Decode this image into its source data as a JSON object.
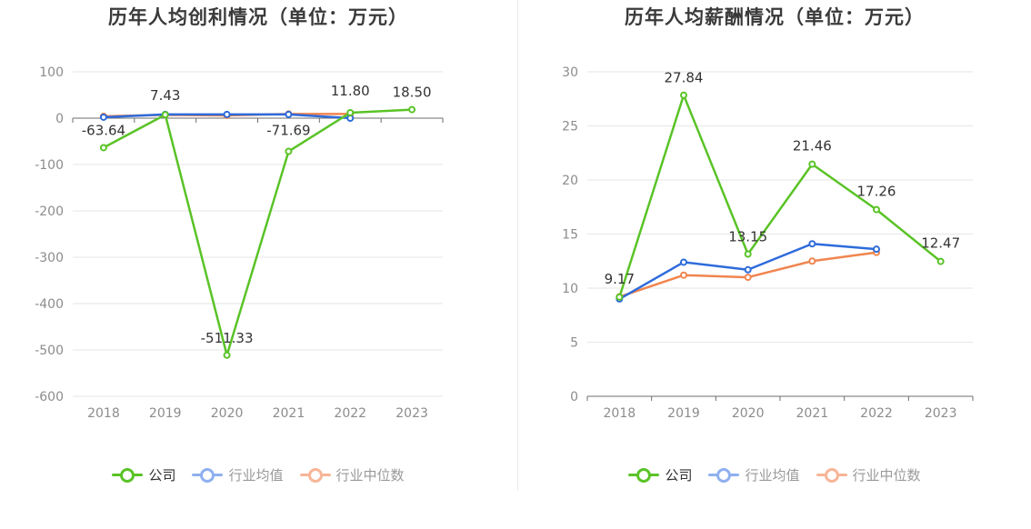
{
  "chart_data": [
    {
      "type": "line",
      "title": "历年人均创利情况（单位：万元）",
      "categories": [
        "2018",
        "2019",
        "2020",
        "2021",
        "2022",
        "2023"
      ],
      "ylim": [
        -600,
        100
      ],
      "yticks": [
        100,
        0,
        -100,
        -200,
        -300,
        -400,
        -500,
        -600
      ],
      "grid": true,
      "legend_position": "bottom",
      "series": [
        {
          "name": "公司",
          "color": "#5ac327",
          "values": [
            -63.64,
            7.43,
            -511.33,
            -71.69,
            11.8,
            18.5
          ],
          "labels": [
            "-63.64",
            "7.43",
            "-511.33",
            "-71.69",
            "11.80",
            "18.50"
          ]
        },
        {
          "name": "行业均值",
          "color": "#2e6bdb",
          "values": [
            2,
            8,
            8,
            8,
            0,
            null
          ]
        },
        {
          "name": "行业中位数",
          "color": "#f0854f",
          "values": [
            4,
            7,
            6,
            9,
            9,
            null
          ]
        }
      ]
    },
    {
      "type": "line",
      "title": "历年人均薪酬情况（单位：万元）",
      "categories": [
        "2018",
        "2019",
        "2020",
        "2021",
        "2022",
        "2023"
      ],
      "ylim": [
        0,
        30
      ],
      "yticks": [
        30,
        25,
        20,
        15,
        10,
        5,
        0
      ],
      "grid": true,
      "legend_position": "bottom",
      "series": [
        {
          "name": "公司",
          "color": "#5ac327",
          "values": [
            9.17,
            27.84,
            13.15,
            21.46,
            17.26,
            12.47
          ],
          "labels": [
            "9.17",
            "27.84",
            "13.15",
            "21.46",
            "17.26",
            "12.47"
          ]
        },
        {
          "name": "行业均值",
          "color": "#2e6bdb",
          "values": [
            9.0,
            12.4,
            11.7,
            14.1,
            13.6,
            null
          ]
        },
        {
          "name": "行业中位数",
          "color": "#f0854f",
          "values": [
            9.2,
            11.2,
            11.0,
            12.5,
            13.3,
            null
          ]
        }
      ]
    }
  ],
  "legend": {
    "items": [
      {
        "label": "公司",
        "color": "#5ac327",
        "icon": "line-circle-icon"
      },
      {
        "label": "行业均值",
        "color": "#8fb0ef",
        "icon": "line-circle-icon"
      },
      {
        "label": "行业中位数",
        "color": "#f7b597",
        "icon": "line-circle-icon"
      }
    ]
  }
}
